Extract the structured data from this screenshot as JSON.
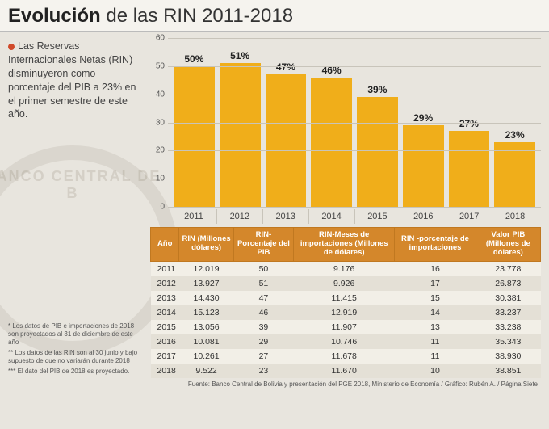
{
  "title_bold": "Evolución",
  "title_rest": " de las RIN 2011-2018",
  "intro": "Las Reservas Internacionales Netas (RIN) disminuyeron como porcentaje del PIB a 23% en el primer semestre de este año.",
  "chart": {
    "type": "bar",
    "ylim": [
      0,
      60
    ],
    "ytick_step": 10,
    "bar_color": "#f0ae1a",
    "grid_color": "#c8c4ba",
    "background": "#e8e5de",
    "label_fontsize": 12,
    "categories": [
      "2011",
      "2012",
      "2013",
      "2014",
      "2015",
      "2016",
      "2017",
      "2018"
    ],
    "values": [
      50,
      51,
      47,
      46,
      39,
      29,
      27,
      23
    ],
    "value_labels": [
      "50%",
      "51%",
      "47%",
      "46%",
      "39%",
      "29%",
      "27%",
      "23%"
    ]
  },
  "table": {
    "headers": [
      "Año",
      "RIN (Millones dólares)",
      "RIN- Porcentaje del PIB",
      "RIN-Meses de importaciones (Millones de dólares)",
      "RIN -porcentaje de importaciones",
      "Valor PIB (Millones de dólares)"
    ],
    "rows": [
      [
        "2011",
        "12.019",
        "50",
        "9.176",
        "16",
        "23.778"
      ],
      [
        "2012",
        "13.927",
        "51",
        "9.926",
        "17",
        "26.873"
      ],
      [
        "2013",
        "14.430",
        "47",
        "11.415",
        "15",
        "30.381"
      ],
      [
        "2014",
        "15.123",
        "46",
        "12.919",
        "14",
        "33.237"
      ],
      [
        "2015",
        "13.056",
        "39",
        "11.907",
        "13",
        "33.238"
      ],
      [
        "2016",
        "10.081",
        "29",
        "10.746",
        "11",
        "35.343"
      ],
      [
        "2017",
        "10.261",
        "27",
        "11.678",
        "11",
        "38.930"
      ],
      [
        "2018",
        "9.522",
        "23",
        "11.670",
        "10",
        "38.851"
      ]
    ],
    "header_bg": "#d4872b",
    "header_fg": "#ffffff",
    "row_odd_bg": "#f2efe7",
    "row_even_bg": "#e4e0d6"
  },
  "footnotes": [
    "*   Los datos de PIB e importaciones de 2018 son proyectados al 31 de diciembre de este año",
    "**  Los datos de las RIN son al 30 junio y bajo supuesto de que no variarán durante 2018",
    "*** El dato del PIB de 2018 es proyectado."
  ],
  "source": "Fuente: Banco Central de Bolivia y presentación del PGE 2018, Ministerio de Economía / Gráfico: Rubén A. / Página Siete"
}
